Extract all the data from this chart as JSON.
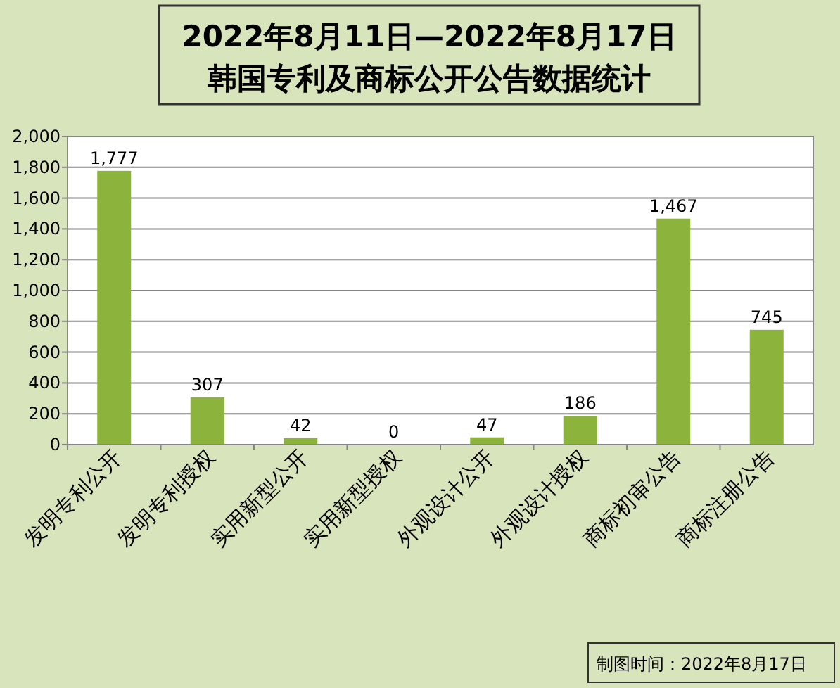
{
  "chart_data": {
    "type": "bar",
    "title": "2022年8月11日—2022年8月17日",
    "subtitle": "韩国专利及商标公开公告数据统计",
    "categories": [
      "发明专利公开",
      "发明专利授权",
      "实用新型公开",
      "实用新型授权",
      "外观设计公开",
      "外观设计授权",
      "商标初审公告",
      "商标注册公告"
    ],
    "values": [
      1777,
      307,
      42,
      0,
      47,
      186,
      1467,
      745
    ],
    "value_labels": [
      "1,777",
      "307",
      "42",
      "0",
      "47",
      "186",
      "1,467",
      "745"
    ],
    "color": "#8cb43c",
    "ylim": [
      0,
      2000
    ],
    "yticks": [
      {
        "value": 0,
        "label": "0"
      },
      {
        "value": 200,
        "label": "200"
      },
      {
        "value": 400,
        "label": "400"
      },
      {
        "value": 600,
        "label": "600"
      },
      {
        "value": 800,
        "label": "800"
      },
      {
        "value": 1000,
        "label": "1,000"
      },
      {
        "value": 1200,
        "label": "1,200"
      },
      {
        "value": 1400,
        "label": "1,400"
      },
      {
        "value": 1600,
        "label": "1,600"
      },
      {
        "value": 1800,
        "label": "1,800"
      },
      {
        "value": 2000,
        "label": "2,000"
      }
    ],
    "grid": "y",
    "annotations": [
      "制图时间：2022年8月17日"
    ]
  }
}
